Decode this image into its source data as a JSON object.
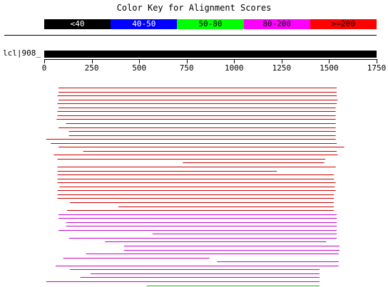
{
  "title": "Color Key for Alignment Scores",
  "color_key": [
    {
      "label": "<40",
      "color": "#000000",
      "text_color": "#ffffff"
    },
    {
      "label": "40-50",
      "color": "#0000ff",
      "text_color": "#ffffff"
    },
    {
      "label": "50-80",
      "color": "#00ff00",
      "text_color": "#000000"
    },
    {
      "label": "80-200",
      "color": "#ff00ff",
      "text_color": "#000000"
    },
    {
      "label": ">=200",
      "color": "#ff0000",
      "text_color": "#000000"
    }
  ],
  "query": {
    "label": "lcl|908_",
    "length": 1750
  },
  "axis_ticks": [
    "0",
    "250",
    "500",
    "750",
    "1000",
    "1250",
    "1500",
    "1750"
  ],
  "chart_data": {
    "type": "alignment_hits",
    "xlabel": "Query position",
    "xlim": [
      0,
      1750
    ],
    "hits": [
      {
        "start": 75,
        "end": 1540,
        "score_class": "red"
      },
      {
        "start": 75,
        "end": 1540,
        "score_class": "red"
      },
      {
        "start": 70,
        "end": 1540,
        "score_class": "red"
      },
      {
        "start": 75,
        "end": 1545,
        "score_class": "red"
      },
      {
        "start": 70,
        "end": 1540,
        "score_class": "red"
      },
      {
        "start": 75,
        "end": 1535,
        "score_class": "red"
      },
      {
        "start": 70,
        "end": 1535,
        "score_class": "red"
      },
      {
        "start": 70,
        "end": 1535,
        "score_class": "red"
      },
      {
        "start": 65,
        "end": 1535,
        "score_class": "red"
      },
      {
        "start": 115,
        "end": 1535,
        "score_class": "red"
      },
      {
        "start": 75,
        "end": 1535,
        "score_class": "red"
      },
      {
        "start": 130,
        "end": 1535,
        "score_class": "red"
      },
      {
        "start": 130,
        "end": 1535,
        "score_class": "red"
      },
      {
        "start": 10,
        "end": 1535,
        "score_class": "red"
      },
      {
        "start": 35,
        "end": 1540,
        "score_class": "red"
      },
      {
        "start": 75,
        "end": 1580,
        "score_class": "red"
      },
      {
        "start": 205,
        "end": 1540,
        "score_class": "red"
      },
      {
        "start": 50,
        "end": 1545,
        "score_class": "red"
      },
      {
        "start": 70,
        "end": 1480,
        "score_class": "red"
      },
      {
        "start": 730,
        "end": 1475,
        "score_class": "red"
      },
      {
        "start": 70,
        "end": 1535,
        "score_class": "red"
      },
      {
        "start": 70,
        "end": 1225,
        "score_class": "red"
      },
      {
        "start": 70,
        "end": 1525,
        "score_class": "red"
      },
      {
        "start": 70,
        "end": 1525,
        "score_class": "red"
      },
      {
        "start": 70,
        "end": 1535,
        "score_class": "red"
      },
      {
        "start": 80,
        "end": 1530,
        "score_class": "red"
      },
      {
        "start": 70,
        "end": 1535,
        "score_class": "red"
      },
      {
        "start": 70,
        "end": 1525,
        "score_class": "red"
      },
      {
        "start": 70,
        "end": 1525,
        "score_class": "red"
      },
      {
        "start": 135,
        "end": 1525,
        "score_class": "red"
      },
      {
        "start": 390,
        "end": 1525,
        "score_class": "red"
      },
      {
        "start": 120,
        "end": 1525,
        "score_class": "red"
      },
      {
        "start": 75,
        "end": 1540,
        "score_class": "magenta"
      },
      {
        "start": 75,
        "end": 1540,
        "score_class": "magenta"
      },
      {
        "start": 115,
        "end": 1540,
        "score_class": "magenta"
      },
      {
        "start": 115,
        "end": 1540,
        "score_class": "magenta"
      },
      {
        "start": 75,
        "end": 1540,
        "score_class": "magenta"
      },
      {
        "start": 570,
        "end": 1540,
        "score_class": "magenta"
      },
      {
        "start": 130,
        "end": 1540,
        "score_class": "magenta"
      },
      {
        "start": 320,
        "end": 1485,
        "score_class": "magenta"
      },
      {
        "start": 420,
        "end": 1555,
        "score_class": "magenta"
      },
      {
        "start": 420,
        "end": 1555,
        "score_class": "magenta"
      },
      {
        "start": 220,
        "end": 1550,
        "score_class": "magenta"
      },
      {
        "start": 100,
        "end": 870,
        "score_class": "magenta"
      },
      {
        "start": 910,
        "end": 1550,
        "score_class": "magenta"
      },
      {
        "start": 60,
        "end": 1550,
        "score_class": "magenta"
      },
      {
        "start": 135,
        "end": 1450,
        "score_class": "magenta"
      },
      {
        "start": 245,
        "end": 1450,
        "score_class": "magenta"
      },
      {
        "start": 190,
        "end": 1450,
        "score_class": "magenta"
      },
      {
        "start": 10,
        "end": 1450,
        "score_class": "magenta"
      },
      {
        "start": 540,
        "end": 1450,
        "score_class": "green"
      }
    ]
  }
}
